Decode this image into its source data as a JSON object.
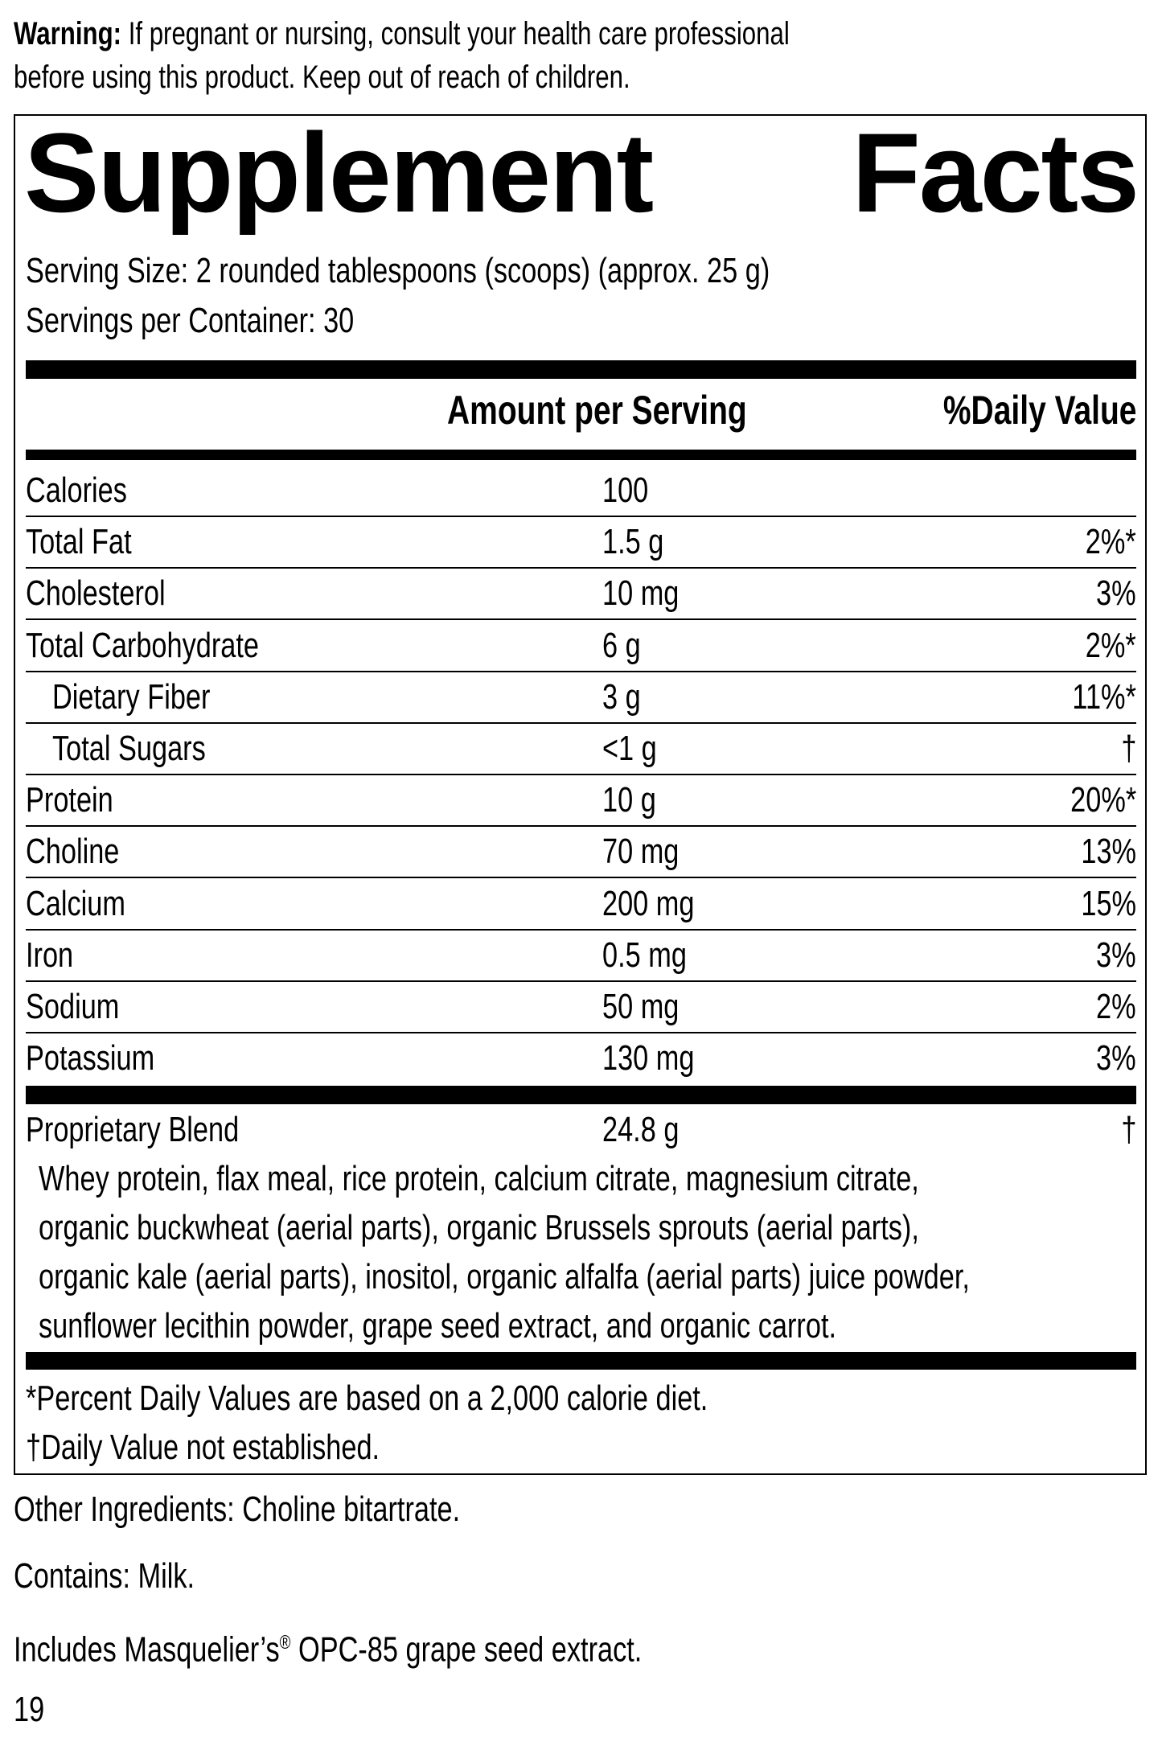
{
  "warning": {
    "label": "Warning:",
    "line1": "If pregnant or nursing, consult your health care professional",
    "line2": "before using this product. Keep out of reach of children."
  },
  "title": {
    "word1": "Supplement",
    "word2": "Facts"
  },
  "serving_size": "Serving Size: 2 rounded tablespoons (scoops) (approx. 25 g)",
  "servings_per_container": "Servings per Container: 30",
  "headers": {
    "amount": "Amount per Serving",
    "dv": "%Daily Value"
  },
  "rows": [
    {
      "name": "Calories",
      "amount": "100",
      "dv": "",
      "indent": false
    },
    {
      "name": "Total Fat",
      "amount": "1.5 g",
      "dv": "2%*",
      "indent": false
    },
    {
      "name": "Cholesterol",
      "amount": "10 mg",
      "dv": "3%",
      "indent": false
    },
    {
      "name": "Total Carbohydrate",
      "amount": "6 g",
      "dv": "2%*",
      "indent": false
    },
    {
      "name": "Dietary Fiber",
      "amount": "3 g",
      "dv": "11%*",
      "indent": true
    },
    {
      "name": "Total Sugars",
      "amount": "<1 g",
      "dv": "†",
      "indent": true
    },
    {
      "name": "Protein",
      "amount": "10 g",
      "dv": "20%*",
      "indent": false
    },
    {
      "name": "Choline",
      "amount": "70 mg",
      "dv": "13%",
      "indent": false
    },
    {
      "name": "Calcium",
      "amount": "200 mg",
      "dv": "15%",
      "indent": false
    },
    {
      "name": "Iron",
      "amount": "0.5 mg",
      "dv": "3%",
      "indent": false
    },
    {
      "name": "Sodium",
      "amount": "50 mg",
      "dv": "2%",
      "indent": false
    },
    {
      "name": "Potassium",
      "amount": "130 mg",
      "dv": "3%",
      "indent": false
    }
  ],
  "blend": {
    "name": "Proprietary Blend",
    "amount": "24.8 g",
    "dv": "†",
    "ingredients": [
      "Whey protein, flax meal, rice protein, calcium citrate, magnesium citrate,",
      "organic buckwheat (aerial parts), organic Brussels sprouts (aerial parts),",
      "organic kale (aerial parts), inositol, organic alfalfa (aerial parts) juice powder,",
      "sunflower lecithin powder, grape seed extract, and organic carrot."
    ]
  },
  "footnotes": {
    "percent": "*Percent Daily Values are based on a 2,000 calorie diet.",
    "dagger": "†Daily Value not established."
  },
  "other_ingredients": "Other Ingredients: Choline bitartrate.",
  "contains": "Contains: Milk.",
  "includes": {
    "before": "Includes Masquelier’s",
    "reg": "®",
    "after": " OPC-85 grape seed extract."
  },
  "page_number": "19"
}
